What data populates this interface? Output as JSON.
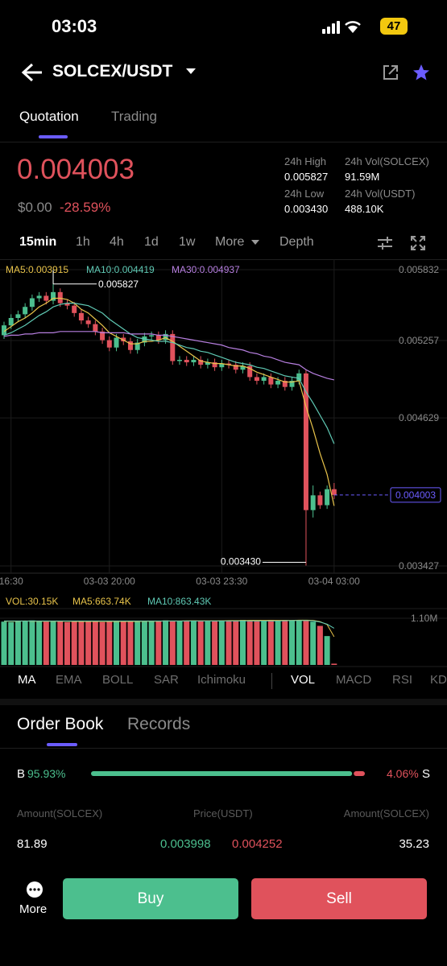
{
  "status_bar": {
    "time": "03:03",
    "battery": "47"
  },
  "header": {
    "pair": "SOLCEX/USDT"
  },
  "tabs": {
    "items": [
      "Quotation",
      "Trading"
    ],
    "active": 0
  },
  "ticker": {
    "price": "0.004003",
    "fiat": "$0.00",
    "change": "-28.59%",
    "stats": [
      {
        "label": "24h High",
        "value": "0.005827"
      },
      {
        "label": "24h Vol(SOLCEX)",
        "value": "91.59M"
      },
      {
        "label": "24h Low",
        "value": "0.003430"
      },
      {
        "label": "24h Vol(USDT)",
        "value": "488.10K"
      }
    ]
  },
  "intervals": {
    "items": [
      "15min",
      "1h",
      "4h",
      "1d",
      "1w",
      "More",
      "Depth"
    ],
    "active": 0
  },
  "chart_data": [
    {
      "type": "candlestick",
      "categories": [
        null,
        "16:30",
        null,
        null,
        null,
        null,
        null,
        null,
        null,
        null,
        null,
        null,
        null,
        null,
        null,
        "03-03 20:00",
        null,
        null,
        null,
        null,
        null,
        null,
        null,
        null,
        null,
        null,
        null,
        null,
        null,
        null,
        null,
        "03-03 23:30",
        null,
        null,
        null,
        null,
        null,
        null,
        null,
        null,
        null,
        null,
        null,
        null,
        null,
        null,
        null,
        "03-04 03:00"
      ],
      "open": [
        0.0053,
        0.00538,
        0.00544,
        0.00547,
        0.00553,
        0.0056,
        0.00562,
        0.00558,
        0.00565,
        0.00556,
        0.00554,
        0.00548,
        0.00542,
        0.00539,
        0.00533,
        0.00526,
        0.0052,
        0.00528,
        0.00525,
        0.00518,
        0.00524,
        0.00529,
        0.0053,
        0.00526,
        0.00531,
        0.00509,
        0.0051,
        0.00508,
        0.0051,
        0.00506,
        0.00508,
        0.00504,
        0.00507,
        0.00506,
        0.00502,
        0.00505,
        0.00496,
        0.00493,
        0.00496,
        0.0049,
        0.00493,
        0.00488,
        0.00493,
        0.00499,
        0.00388,
        0.004,
        0.00392,
        0.00405
      ],
      "high": [
        0.00541,
        0.00547,
        0.0055,
        0.00556,
        0.00563,
        0.00565,
        0.00565,
        0.005827,
        0.00568,
        0.00559,
        0.00557,
        0.00551,
        0.00545,
        0.00542,
        0.00536,
        0.00529,
        0.00531,
        0.00531,
        0.00528,
        0.00527,
        0.00532,
        0.00533,
        0.00533,
        0.00534,
        0.00534,
        0.00513,
        0.00513,
        0.00513,
        0.00513,
        0.00511,
        0.00511,
        0.0051,
        0.0051,
        0.00509,
        0.00508,
        0.00508,
        0.00499,
        0.00499,
        0.00499,
        0.00496,
        0.00496,
        0.00496,
        0.00502,
        0.00502,
        0.00408,
        0.00403,
        0.00408,
        0.0041
      ],
      "low": [
        0.00527,
        0.00535,
        0.00541,
        0.00544,
        0.0055,
        0.00557,
        0.00555,
        0.00555,
        0.00553,
        0.00551,
        0.00545,
        0.00539,
        0.00536,
        0.0053,
        0.00523,
        0.00517,
        0.00517,
        0.00522,
        0.00515,
        0.00515,
        0.00521,
        0.00526,
        0.00523,
        0.00523,
        0.00506,
        0.00506,
        0.00505,
        0.00505,
        0.00503,
        0.00503,
        0.00501,
        0.00501,
        0.00503,
        0.00499,
        0.00499,
        0.00493,
        0.0049,
        0.0049,
        0.00487,
        0.00487,
        0.00485,
        0.00485,
        0.0049,
        0.00343,
        0.00382,
        0.00389,
        0.00389,
        0.00397
      ],
      "close": [
        0.00538,
        0.00544,
        0.00547,
        0.00553,
        0.0056,
        0.00562,
        0.00558,
        0.00565,
        0.00556,
        0.00554,
        0.00548,
        0.00542,
        0.00539,
        0.00533,
        0.00526,
        0.0052,
        0.00528,
        0.00525,
        0.00518,
        0.00524,
        0.00529,
        0.0053,
        0.00526,
        0.00531,
        0.00509,
        0.0051,
        0.00508,
        0.0051,
        0.00506,
        0.00508,
        0.00504,
        0.00507,
        0.00506,
        0.00502,
        0.00505,
        0.00496,
        0.00493,
        0.00496,
        0.0049,
        0.00493,
        0.00488,
        0.00493,
        0.00499,
        0.00388,
        0.004,
        0.00392,
        0.00405,
        0.004003
      ],
      "up_color": "#4cbf8e",
      "down_color": "#e0525c",
      "series": [
        {
          "name": "MA5:0.003915",
          "color": "#e8c34a",
          "values": [
            0.00533,
            0.00537,
            0.00541,
            0.00544,
            0.00548,
            0.00553,
            0.00556,
            0.0056,
            0.0056,
            0.00559,
            0.00556,
            0.00551,
            0.00548,
            0.00543,
            0.00538,
            0.00532,
            0.00529,
            0.00526,
            0.00523,
            0.00523,
            0.00525,
            0.00525,
            0.00526,
            0.00528,
            0.00525,
            0.00521,
            0.00517,
            0.00513,
            0.00509,
            0.00508,
            0.00507,
            0.00507,
            0.00506,
            0.00505,
            0.00505,
            0.00503,
            0.005,
            0.00498,
            0.00496,
            0.00494,
            0.00492,
            0.00492,
            0.00493,
            0.00472,
            0.00454,
            0.00434,
            0.00417,
            0.003915
          ]
        },
        {
          "name": "MA10:0.004419",
          "color": "#5fc9b4",
          "values": [
            0.0053,
            0.00532,
            0.00535,
            0.00538,
            0.00542,
            0.00546,
            0.00549,
            0.00553,
            0.00555,
            0.00556,
            0.00556,
            0.00555,
            0.00554,
            0.00551,
            0.00548,
            0.00543,
            0.00539,
            0.00535,
            0.00531,
            0.00528,
            0.00527,
            0.00526,
            0.00525,
            0.00525,
            0.00524,
            0.00522,
            0.0052,
            0.00519,
            0.00517,
            0.00516,
            0.00514,
            0.00512,
            0.0051,
            0.00508,
            0.00507,
            0.00506,
            0.00504,
            0.00503,
            0.00501,
            0.00499,
            0.00497,
            0.00496,
            0.00495,
            0.00484,
            0.00475,
            0.00465,
            0.00455,
            0.004419
          ]
        },
        {
          "name": "MA30:0.004937",
          "color": "#b77fe0",
          "values": [
            0.00529,
            0.0053,
            0.0053,
            0.00531,
            0.00531,
            0.00532,
            0.00532,
            0.00532,
            0.00533,
            0.00533,
            0.00533,
            0.00533,
            0.00533,
            0.00533,
            0.00532,
            0.00532,
            0.00532,
            0.00532,
            0.00531,
            0.00531,
            0.00531,
            0.00531,
            0.0053,
            0.0053,
            0.00529,
            0.00528,
            0.00527,
            0.00526,
            0.00525,
            0.00524,
            0.00523,
            0.00522,
            0.0052,
            0.00519,
            0.00518,
            0.00516,
            0.00515,
            0.00513,
            0.00512,
            0.0051,
            0.00508,
            0.00507,
            0.00506,
            0.00502,
            0.00499,
            0.00497,
            0.00495,
            0.004937
          ]
        }
      ],
      "ylim": [
        0.003427,
        0.005832
      ],
      "yticks": [
        0.003427,
        0.004629,
        0.005257,
        0.005832
      ],
      "high_marker": 0.005827,
      "low_marker": {
        "value": 0.00343,
        "label": "0.003430"
      },
      "last_price": 0.004003,
      "last_price_color": "#6b5cff"
    },
    {
      "type": "bar",
      "series": [
        {
          "name": "VOL:30.15K",
          "color": "#e8c34a",
          "values": [
            1020000,
            1010000,
            1030000,
            1040000,
            1050000,
            1030000,
            1020000,
            1040000,
            1030000,
            1010000,
            1020000,
            1030000,
            1040000,
            1020000,
            1010000,
            1030000,
            1020000,
            1040000,
            1030000,
            1020000,
            1030000,
            1040000,
            1030000,
            1050000,
            1040000,
            1030000,
            1040000,
            1050000,
            1040000,
            1030000,
            1040000,
            1050000,
            1040000,
            1050000,
            1060000,
            1050000,
            1040000,
            1050000,
            1060000,
            1050000,
            1060000,
            1050000,
            1060000,
            1060000,
            1020000,
            920000,
            680000,
            30150
          ]
        },
        {
          "name": "MA5:663.74K",
          "color": "#e8c34a",
          "values": [
            1030000,
            1030000,
            1030000,
            1035000,
            1030000,
            1030000,
            1030000,
            1030000,
            1030000,
            1030000,
            1025000,
            1025000,
            1025000,
            1025000,
            1025000,
            1025000,
            1025000,
            1025000,
            1025000,
            1025000,
            1030000,
            1030000,
            1030000,
            1035000,
            1035000,
            1035000,
            1040000,
            1040000,
            1040000,
            1040000,
            1040000,
            1040000,
            1045000,
            1045000,
            1045000,
            1050000,
            1050000,
            1050000,
            1050000,
            1050000,
            1050000,
            1050000,
            1055000,
            1055000,
            1050000,
            1020000,
            950000,
            663740
          ]
        },
        {
          "name": "MA10:863.43K",
          "color": "#5fc9b4",
          "values": [
            1035000,
            1035000,
            1035000,
            1035000,
            1035000,
            1035000,
            1035000,
            1035000,
            1035000,
            1035000,
            1035000,
            1035000,
            1035000,
            1035000,
            1035000,
            1035000,
            1035000,
            1035000,
            1035000,
            1035000,
            1035000,
            1035000,
            1035000,
            1035000,
            1035000,
            1035000,
            1035000,
            1035000,
            1035000,
            1035000,
            1035000,
            1035000,
            1035000,
            1035000,
            1035000,
            1035000,
            1035000,
            1035000,
            1035000,
            1035000,
            1040000,
            1045000,
            1045000,
            1045000,
            1040000,
            1010000,
            960000,
            863430
          ]
        }
      ],
      "ylim": [
        0,
        1100000
      ],
      "yticks": [
        {
          "value": 1100000,
          "label": "1.10M"
        }
      ]
    }
  ],
  "indicators": {
    "main": [
      "MA",
      "EMA",
      "BOLL",
      "SAR",
      "Ichimoku"
    ],
    "sub": [
      "VOL",
      "MACD",
      "RSI",
      "KD"
    ]
  },
  "order_book": {
    "tabs": [
      "Order Book",
      "Records"
    ],
    "ratio": {
      "buy_label": "B",
      "sell_label": "S",
      "values": [
        95.93,
        4.06
      ],
      "value_labels": [
        "95.93%",
        "4.06%"
      ]
    },
    "columns": [
      "Amount(SOLCEX)",
      "Price(USDT)",
      "Amount(SOLCEX)"
    ],
    "rows": [
      [
        "81.89",
        "0.003998",
        "0.004252",
        "35.23"
      ]
    ]
  },
  "actions": {
    "more": "More",
    "buy": "Buy",
    "sell": "Sell"
  }
}
